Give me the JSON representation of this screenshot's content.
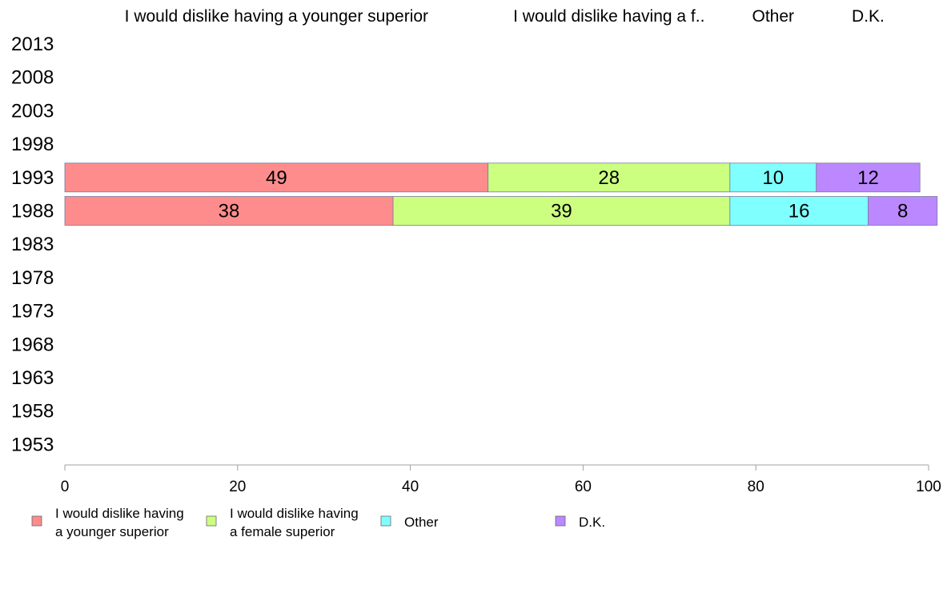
{
  "chart_data": {
    "type": "bar",
    "orientation": "horizontal",
    "stacked": true,
    "categories": [
      "2013",
      "2008",
      "2003",
      "1998",
      "1993",
      "1988",
      "1983",
      "1978",
      "1973",
      "1968",
      "1963",
      "1958",
      "1953"
    ],
    "series": [
      {
        "name": "I would dislike having a younger superior",
        "header": "I would dislike having a younger superior",
        "legend": [
          "I would dislike having",
          "a younger superior"
        ],
        "color": "#ff8c8c",
        "values": [
          null,
          null,
          null,
          null,
          49,
          38,
          null,
          null,
          null,
          null,
          null,
          null,
          null
        ]
      },
      {
        "name": "I would dislike having a female superior",
        "header": "I would dislike having a f..",
        "legend": [
          "I would dislike having",
          "a female superior"
        ],
        "color": "#ccff80",
        "values": [
          null,
          null,
          null,
          null,
          28,
          39,
          null,
          null,
          null,
          null,
          null,
          null,
          null
        ]
      },
      {
        "name": "Other",
        "header": "Other",
        "legend": [
          "Other"
        ],
        "color": "#80ffff",
        "values": [
          null,
          null,
          null,
          null,
          10,
          16,
          null,
          null,
          null,
          null,
          null,
          null,
          null
        ]
      },
      {
        "name": "D.K.",
        "header": "D.K.",
        "legend": [
          "D.K."
        ],
        "color": "#bb88ff",
        "values": [
          null,
          null,
          null,
          null,
          12,
          8,
          null,
          null,
          null,
          null,
          null,
          null,
          null
        ]
      }
    ],
    "xlim": [
      0,
      100
    ],
    "xticks": [
      0,
      20,
      40,
      60,
      80,
      100
    ],
    "grid": false,
    "legend_position": "bottom"
  }
}
